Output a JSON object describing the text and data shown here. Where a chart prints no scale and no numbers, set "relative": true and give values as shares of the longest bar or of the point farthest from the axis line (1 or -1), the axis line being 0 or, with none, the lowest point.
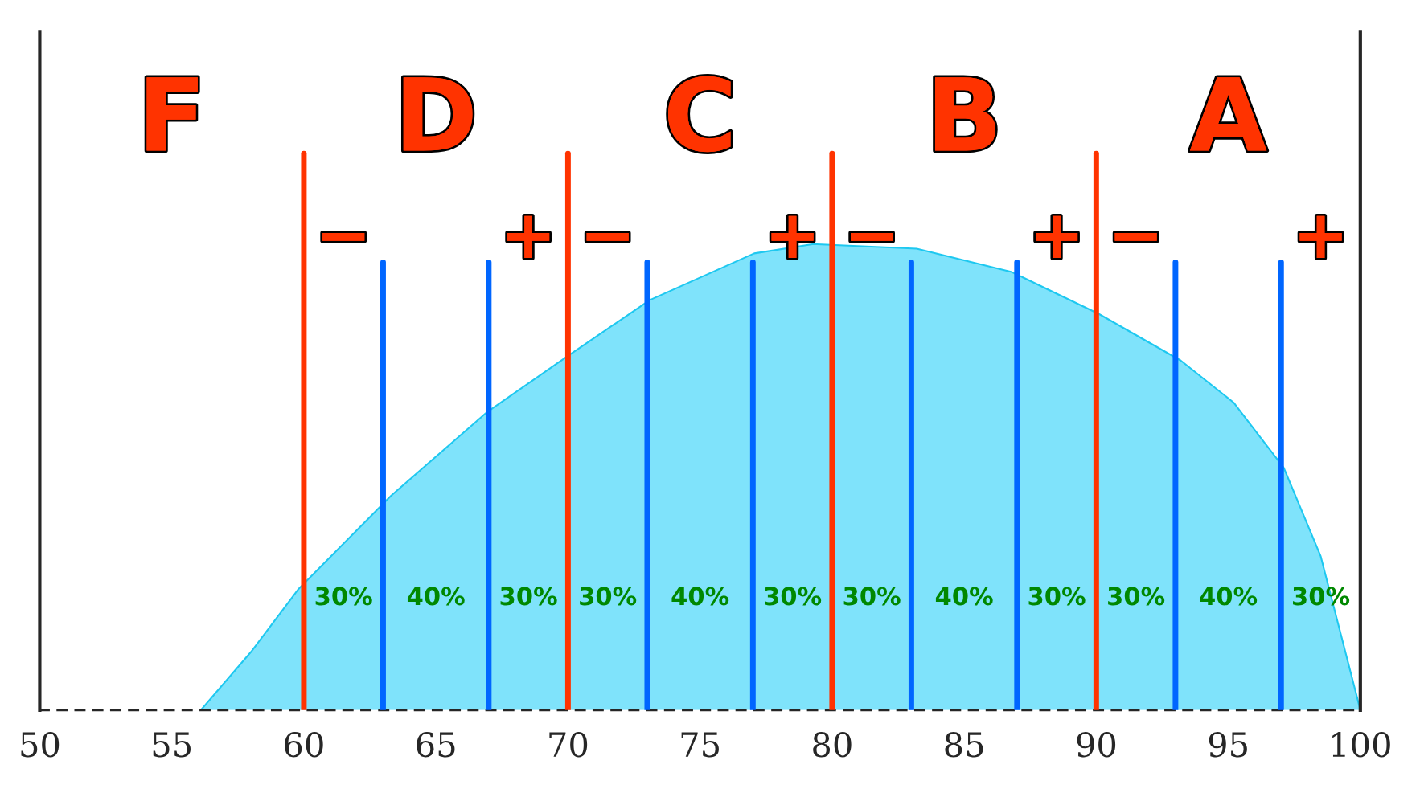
{
  "chart_data": {
    "type": "area",
    "relative": true,
    "x": [
      56.1,
      58,
      59.8,
      63.3,
      66.95,
      70.0,
      73.1,
      77.05,
      79.3,
      83.2,
      86.8,
      90.1,
      93.2,
      95.2,
      97.1,
      98.5,
      100
    ],
    "series": [
      {
        "color": "#7fe3fb",
        "values": [
          0,
          0.125,
          0.26,
          0.46,
          0.64,
          0.76,
          0.88,
          0.98,
          1.0,
          0.99,
          0.94,
          0.85,
          0.75,
          0.66,
          0.52,
          0.33,
          0
        ]
      }
    ],
    "xlim": [
      50,
      100
    ],
    "xticks": [
      50,
      55,
      60,
      65,
      70,
      75,
      80,
      85,
      90,
      95,
      100
    ],
    "grid": false,
    "ref_lines": [
      {
        "axis": "x",
        "value": 60,
        "color": "#ff3300"
      },
      {
        "axis": "x",
        "value": 70,
        "color": "#ff3300"
      },
      {
        "axis": "x",
        "value": 80,
        "color": "#ff3300"
      },
      {
        "axis": "x",
        "value": 90,
        "color": "#ff3300"
      },
      {
        "axis": "x",
        "value": 63,
        "color": "#0066ff"
      },
      {
        "axis": "x",
        "value": 67,
        "color": "#0066ff"
      },
      {
        "axis": "x",
        "value": 73,
        "color": "#0066ff"
      },
      {
        "axis": "x",
        "value": 77,
        "color": "#0066ff"
      },
      {
        "axis": "x",
        "value": 83,
        "color": "#0066ff"
      },
      {
        "axis": "x",
        "value": 87,
        "color": "#0066ff"
      },
      {
        "axis": "x",
        "value": 93,
        "color": "#0066ff"
      },
      {
        "axis": "x",
        "value": 97,
        "color": "#0066ff"
      }
    ],
    "annotations": [
      "F",
      "D",
      "C",
      "B",
      "A",
      "−",
      "+",
      "−",
      "+",
      "−",
      "+",
      "−",
      "+",
      "30%",
      "40%",
      "30%",
      "30%",
      "40%",
      "30%",
      "30%",
      "40%",
      "30%",
      "30%",
      "40%",
      "30%"
    ]
  }
}
